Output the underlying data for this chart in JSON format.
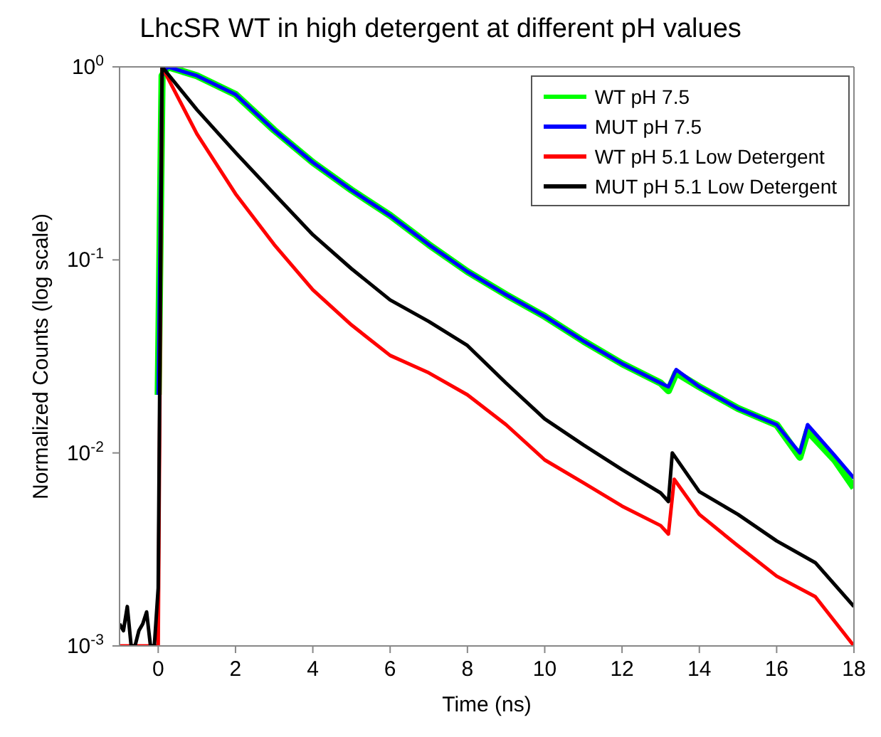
{
  "chart_data": {
    "type": "line",
    "title": "LhcSR WT in high detergent at different pH values",
    "xlabel": "Time (ns)",
    "ylabel": "Normalized Counts (log scale)",
    "log": "y",
    "xlim": [
      -1,
      18
    ],
    "xticks": [
      0,
      2,
      4,
      6,
      8,
      10,
      12,
      14,
      16,
      18
    ],
    "ylim": [
      0.001,
      1
    ],
    "yticks": [
      {
        "value": 0.001,
        "label": "10$^{-3}$"
      },
      {
        "value": 0.01,
        "label": "10$^{-2}$"
      },
      {
        "value": 0.1,
        "label": "10$^{-1}$"
      },
      {
        "value": 1,
        "label": "10$^{0}$"
      }
    ],
    "legend": "top right",
    "grid": false,
    "marker": "none",
    "line_style": "solid",
    "series": [
      {
        "name": "WT pH 7.5",
        "color": "#00ff00",
        "x": [
          0,
          0.1,
          0.25,
          1,
          2,
          3,
          4,
          5,
          6,
          7,
          8,
          9,
          10,
          11,
          12,
          13,
          13.2,
          13.4,
          14,
          15,
          16,
          16.6,
          16.8,
          17.5,
          18
        ],
        "values": [
          0.02,
          0.9,
          1,
          0.9,
          0.72,
          0.47,
          0.32,
          0.23,
          0.17,
          0.12,
          0.087,
          0.066,
          0.051,
          0.038,
          0.029,
          0.023,
          0.021,
          0.026,
          0.022,
          0.017,
          0.014,
          0.0095,
          0.013,
          0.0092,
          0.0066
        ]
      },
      {
        "name": "MUT pH 7.5",
        "color": "#0000ff",
        "x": [
          0,
          0.1,
          0.25,
          1,
          2,
          3,
          4,
          5,
          6,
          7,
          8,
          9,
          10,
          11,
          12,
          13,
          13.2,
          13.4,
          14,
          15,
          16,
          16.6,
          16.8,
          17.5,
          18
        ],
        "values": [
          0.02,
          0.9,
          1,
          0.9,
          0.72,
          0.47,
          0.32,
          0.23,
          0.17,
          0.12,
          0.087,
          0.066,
          0.051,
          0.038,
          0.029,
          0.023,
          0.022,
          0.027,
          0.022,
          0.017,
          0.014,
          0.01,
          0.014,
          0.0097,
          0.0074
        ]
      },
      {
        "name": "WT pH 5.1 Low Detergent",
        "color": "#ff0000",
        "x": [
          -1,
          0,
          0.1,
          1,
          2,
          3,
          4,
          5,
          6,
          7,
          8,
          9,
          10,
          11,
          12,
          13,
          13.2,
          13.35,
          14,
          15,
          16,
          17,
          18
        ],
        "values": [
          0.001,
          0.001,
          1,
          0.45,
          0.22,
          0.12,
          0.07,
          0.046,
          0.032,
          0.026,
          0.02,
          0.014,
          0.0092,
          0.007,
          0.0053,
          0.0042,
          0.0038,
          0.0073,
          0.0048,
          0.0033,
          0.0023,
          0.0018,
          0.001
        ]
      },
      {
        "name": "MUT pH 5.1 Low Detergent",
        "color": "#000000",
        "x": [
          -1,
          -0.9,
          -0.8,
          -0.7,
          -0.6,
          -0.5,
          -0.4,
          -0.3,
          -0.2,
          -0.1,
          0,
          0.1,
          1,
          2,
          3,
          4,
          5,
          6,
          7,
          8,
          9,
          10,
          11,
          12,
          13,
          13.2,
          13.3,
          14,
          15,
          16,
          17,
          18
        ],
        "values": [
          0.0013,
          0.0012,
          0.0016,
          0.001,
          0.001,
          0.0012,
          0.0013,
          0.0015,
          0.001,
          0.001,
          0.002,
          1,
          0.6,
          0.36,
          0.22,
          0.135,
          0.09,
          0.062,
          0.048,
          0.036,
          0.023,
          0.015,
          0.011,
          0.0082,
          0.0062,
          0.0056,
          0.01,
          0.0063,
          0.0048,
          0.0035,
          0.0027,
          0.0016
        ]
      }
    ]
  }
}
